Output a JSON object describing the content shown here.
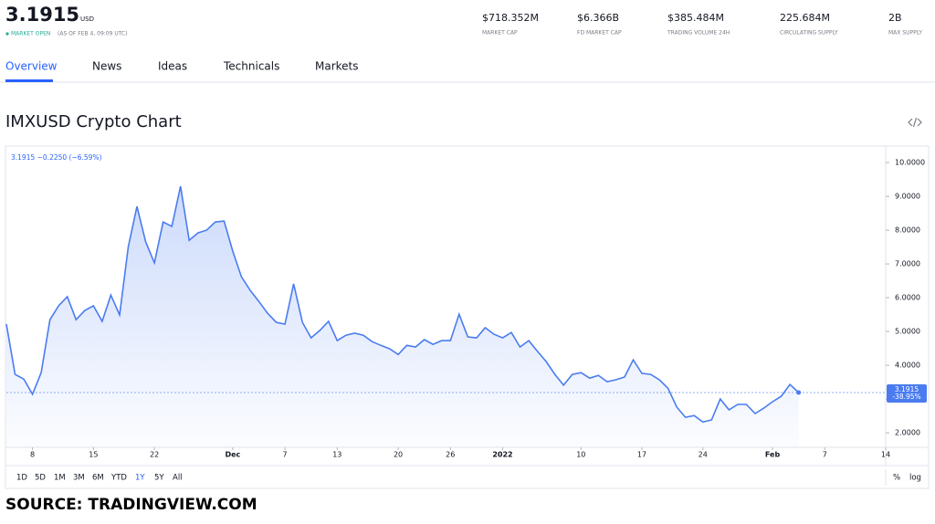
{
  "header": {
    "price": "3.1915",
    "currency": "USD",
    "status": "MARKET OPEN",
    "as_of": "(AS OF FEB 4, 09:09 UTC)"
  },
  "stats": [
    {
      "value": "$718.352M",
      "label": "MARKET CAP"
    },
    {
      "value": "$6.366B",
      "label": "FD MARKET CAP"
    },
    {
      "value": "$385.484M",
      "label": "TRADING VOLUME 24H"
    },
    {
      "value": "225.684M",
      "label": "CIRCULATING SUPPLY"
    },
    {
      "value": "2B",
      "label": "MAX SUPPLY"
    }
  ],
  "tabs": [
    "Overview",
    "News",
    "Ideas",
    "Technicals",
    "Markets"
  ],
  "title": "IMXUSD Crypto Chart",
  "chart_data": {
    "type": "line",
    "legend": "3.1915 −0.2250 (−6.59%)",
    "last_label": "3.1915",
    "last_change_label": "-38.95%",
    "x": [
      -3,
      -2,
      -1,
      0,
      1,
      2,
      3,
      4,
      5,
      6,
      7,
      8,
      9,
      10,
      11,
      12,
      13,
      14,
      15,
      16,
      17,
      18,
      19,
      20,
      21,
      22,
      23,
      24,
      25,
      26,
      27,
      28,
      29,
      30,
      31,
      32,
      33,
      34,
      35,
      36,
      37,
      38,
      39,
      40,
      41,
      42,
      43,
      44,
      45,
      46,
      47,
      48,
      49,
      50,
      51,
      52,
      53,
      54,
      55,
      56,
      57,
      58,
      59,
      60,
      61,
      62,
      63,
      64,
      65,
      66,
      67,
      68,
      69,
      70,
      71,
      72,
      73,
      74,
      75,
      76,
      77,
      78,
      79,
      80,
      81,
      82,
      83,
      84,
      85,
      86,
      87,
      88
    ],
    "series": [
      {
        "color": "#4a7cf0",
        "values": [
          5.22,
          3.73,
          3.59,
          3.14,
          3.78,
          5.35,
          5.76,
          6.03,
          5.35,
          5.62,
          5.76,
          5.3,
          6.08,
          5.49,
          7.51,
          8.7,
          7.65,
          7.03,
          8.24,
          8.11,
          9.3,
          7.7,
          7.92,
          8.0,
          8.24,
          8.27,
          7.38,
          6.62,
          6.22,
          5.89,
          5.54,
          5.27,
          5.22,
          6.41,
          5.27,
          4.81,
          5.03,
          5.3,
          4.73,
          4.89,
          4.95,
          4.89,
          4.7,
          4.59,
          4.49,
          4.32,
          4.59,
          4.54,
          4.76,
          4.62,
          4.73,
          4.73,
          5.51,
          4.84,
          4.81,
          5.11,
          4.92,
          4.81,
          4.97,
          4.54,
          4.73,
          4.41,
          4.11,
          3.73,
          3.41,
          3.73,
          3.78,
          3.62,
          3.7,
          3.51,
          3.57,
          3.65,
          4.16,
          3.76,
          3.73,
          3.57,
          3.32,
          2.76,
          2.46,
          2.51,
          2.32,
          2.38,
          3.0,
          2.68,
          2.84,
          2.84,
          2.57,
          2.73,
          2.92,
          3.08,
          3.43,
          3.1915
        ]
      }
    ],
    "xlim": [
      -3,
      98
    ],
    "xticks": [
      {
        "value": 0,
        "label": "8"
      },
      {
        "value": 7,
        "label": "15"
      },
      {
        "value": 14,
        "label": "22"
      },
      {
        "value": 23,
        "label": "Dec"
      },
      {
        "value": 29,
        "label": "7"
      },
      {
        "value": 35,
        "label": "13"
      },
      {
        "value": 42,
        "label": "20"
      },
      {
        "value": 48,
        "label": "26"
      },
      {
        "value": 54,
        "label": "2022"
      },
      {
        "value": 63,
        "label": "10"
      },
      {
        "value": 70,
        "label": "17"
      },
      {
        "value": 77,
        "label": "24"
      },
      {
        "value": 85,
        "label": "Feb"
      },
      {
        "value": 91,
        "label": "7"
      },
      {
        "value": 98,
        "label": "14"
      }
    ],
    "ylim": [
      1.57,
      10.49
    ],
    "yticks": [
      {
        "value": 2,
        "label": "2.0000"
      },
      {
        "value": 3,
        "label": "3.0000"
      },
      {
        "value": 4,
        "label": "4.0000"
      },
      {
        "value": 5,
        "label": "5.0000"
      },
      {
        "value": 6,
        "label": "6.0000"
      },
      {
        "value": 7,
        "label": "7.0000"
      },
      {
        "value": 8,
        "label": "8.0000"
      },
      {
        "value": 9,
        "label": "9.0000"
      },
      {
        "value": 10,
        "label": "10.0000"
      }
    ]
  },
  "ranges": [
    "1D",
    "5D",
    "1M",
    "3M",
    "6M",
    "YTD",
    "1Y",
    "5Y",
    "All"
  ],
  "scale_options": [
    "%",
    "log"
  ],
  "source": "SOURCE: TRADINGVIEW.COM"
}
